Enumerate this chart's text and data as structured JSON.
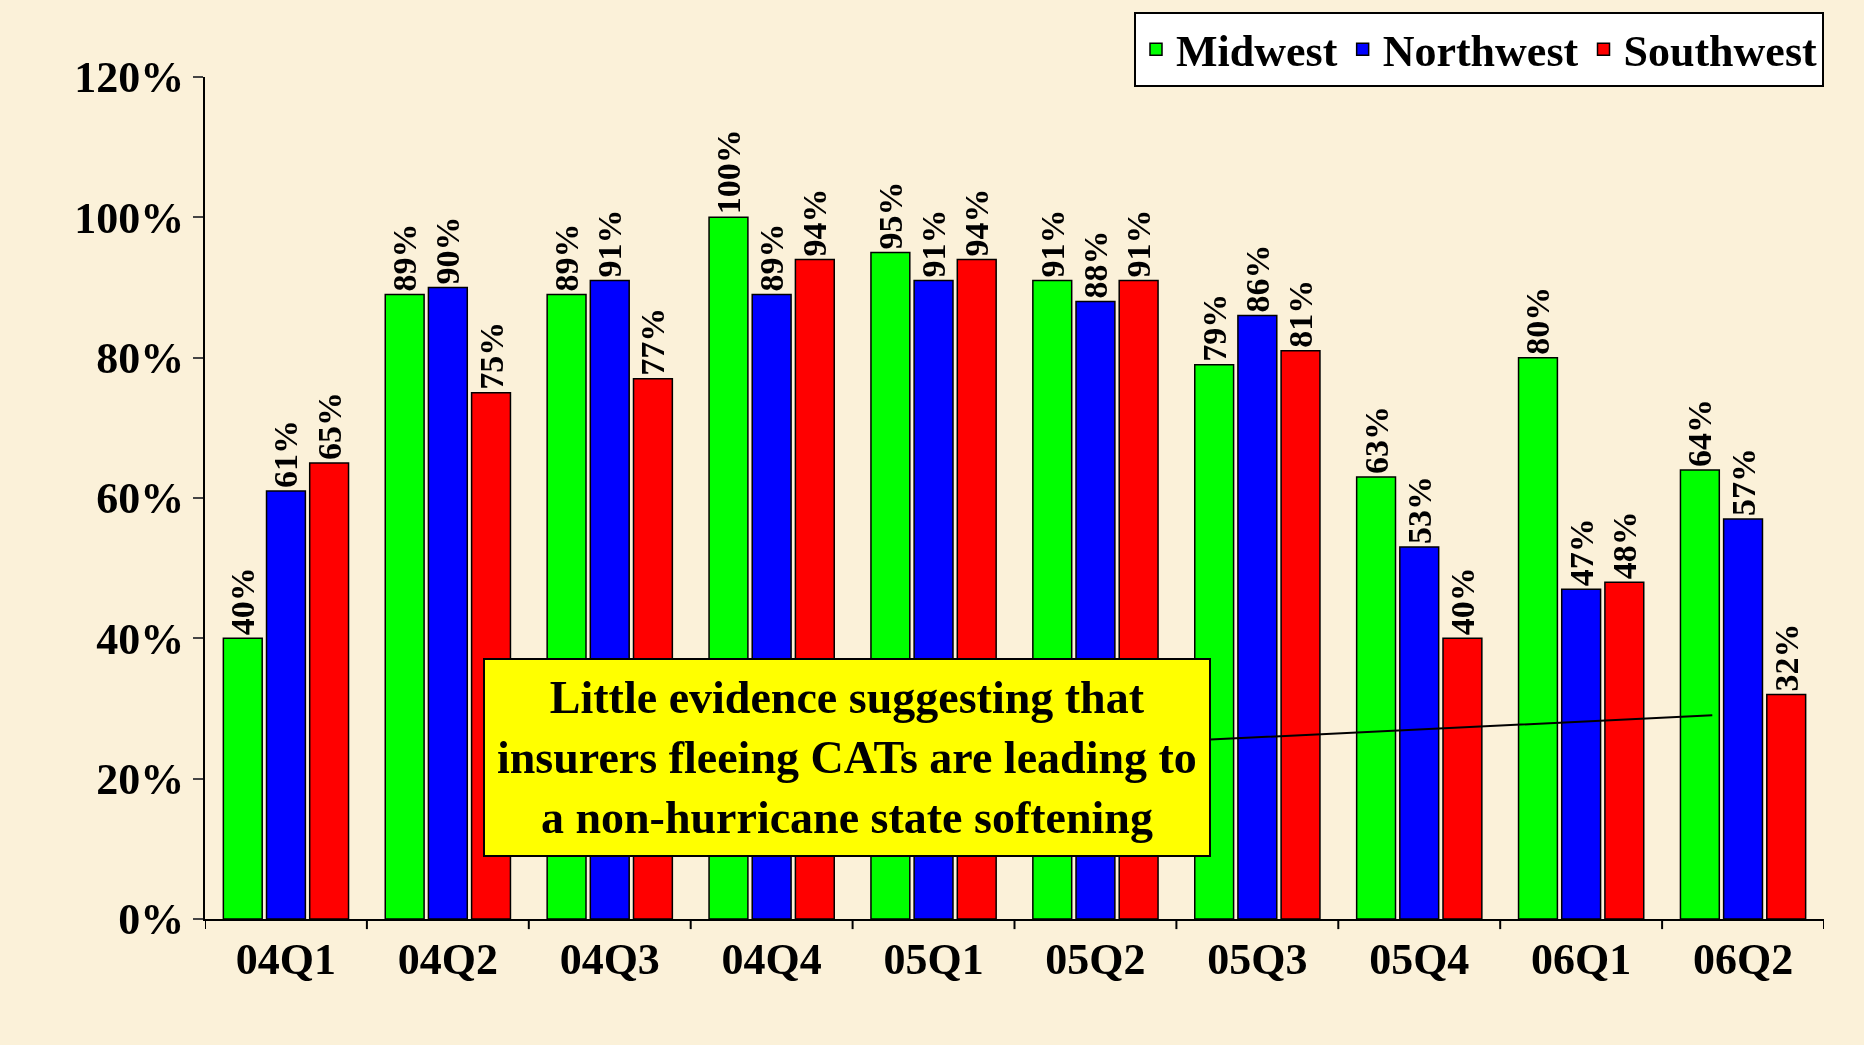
{
  "chart_data": {
    "type": "bar",
    "categories": [
      "04Q1",
      "04Q2",
      "04Q3",
      "04Q4",
      "05Q1",
      "05Q2",
      "05Q3",
      "05Q4",
      "06Q1",
      "06Q2"
    ],
    "series": [
      {
        "name": "Midwest",
        "color": "#00ff00",
        "values": [
          40,
          89,
          89,
          100,
          95,
          91,
          79,
          63,
          80,
          64
        ],
        "value_labels": [
          "40%",
          "89%",
          "89%",
          "100%",
          "95%",
          "91%",
          "79%",
          "63%",
          "80%",
          "64%"
        ]
      },
      {
        "name": "Northwest",
        "color": "#0000ff",
        "values": [
          61,
          90,
          91,
          89,
          91,
          88,
          86,
          53,
          47,
          57
        ],
        "value_labels": [
          "61%",
          "90%",
          "91%",
          "89%",
          "91%",
          "88%",
          "86%",
          "53%",
          "47%",
          "57%"
        ]
      },
      {
        "name": "Southwest",
        "color": "#ff0000",
        "values": [
          65,
          75,
          77,
          94,
          94,
          91,
          81,
          40,
          48,
          32
        ],
        "value_labels": [
          "65%",
          "75%",
          "77%",
          "94%",
          "94%",
          "91%",
          "81%",
          "40%",
          "48%",
          "32%"
        ]
      }
    ],
    "ylim": [
      0,
      120
    ],
    "yticks": [
      {
        "value": 0,
        "label": "0%"
      },
      {
        "value": 20,
        "label": "20%"
      },
      {
        "value": 40,
        "label": "40%"
      },
      {
        "value": 60,
        "label": "60%"
      },
      {
        "value": 80,
        "label": "80%"
      },
      {
        "value": 100,
        "label": "100%"
      },
      {
        "value": 120,
        "label": "120%"
      }
    ],
    "annotations": [
      "Little evidence suggesting that\ninsurers fleeing CATs are leading to\na non-hurricane state softening"
    ],
    "grid": false,
    "legend": "top right"
  }
}
